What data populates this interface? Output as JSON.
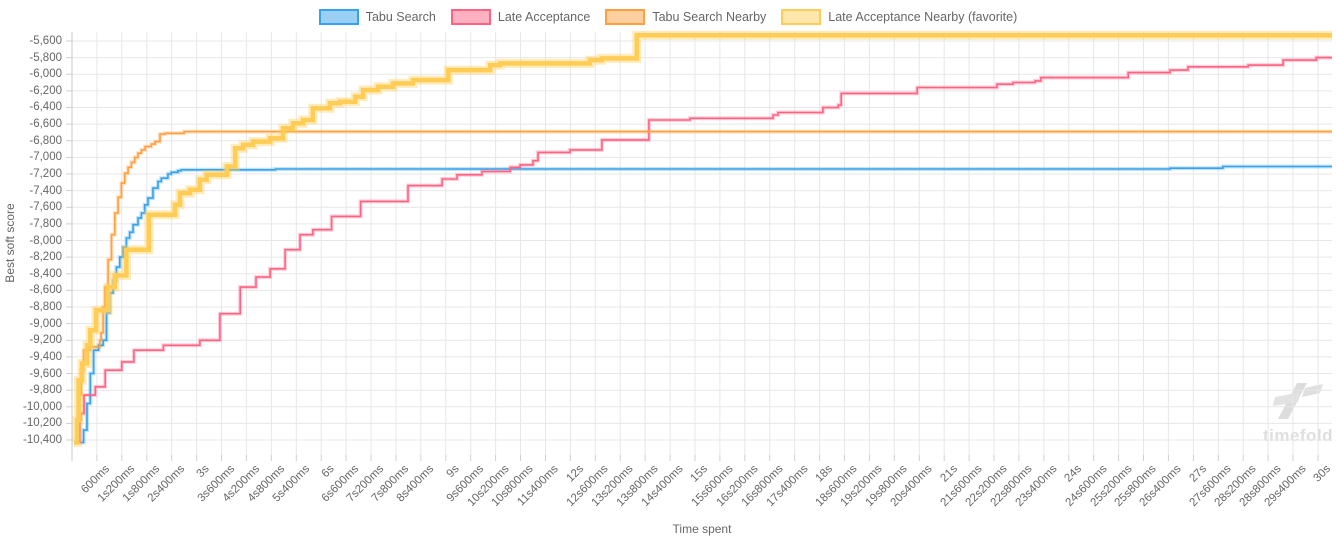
{
  "watermark": {
    "text": "timefold"
  },
  "chart_data": {
    "type": "line",
    "title": "",
    "xlabel": "Time spent",
    "ylabel": "Best soft score",
    "grid": true,
    "legend_position": "top",
    "line_style": "step-after",
    "x_range": [
      0,
      30338
    ],
    "y_range": [
      -10580,
      -5492
    ],
    "y_ticks": [
      -5600,
      -5800,
      -6000,
      -6200,
      -6400,
      -6600,
      -6800,
      -7000,
      -7200,
      -7400,
      -7600,
      -7800,
      -8000,
      -8200,
      -8400,
      -8600,
      -8800,
      -9000,
      -9200,
      -9400,
      -9600,
      -9800,
      -10000,
      -10200,
      -10400
    ],
    "y_tick_labels": [
      "-5,600",
      "-5,800",
      "-6,000",
      "-6,200",
      "-6,400",
      "-6,600",
      "-6,800",
      "-7,000",
      "-7,200",
      "-7,400",
      "-7,600",
      "-7,800",
      "-8,000",
      "-8,200",
      "-8,400",
      "-8,600",
      "-8,800",
      "-9,000",
      "-9,200",
      "-9,400",
      "-9,600",
      "-9,800",
      "-10,000",
      "-10,200",
      "-10,400"
    ],
    "x_ticks_ms": [
      600,
      1200,
      1800,
      2400,
      3000,
      3600,
      4200,
      4800,
      5400,
      6000,
      6600,
      7200,
      7800,
      8400,
      9000,
      9600,
      10200,
      10800,
      11400,
      12000,
      12600,
      13200,
      13800,
      14400,
      15000,
      15600,
      16200,
      16800,
      17400,
      18000,
      18600,
      19200,
      19800,
      20400,
      21000,
      21600,
      22200,
      22800,
      23400,
      24000,
      24600,
      25200,
      25800,
      26400,
      27000,
      27600,
      28200,
      28800,
      29400,
      30000
    ],
    "x_tick_labels": [
      "600ms",
      "1s200ms",
      "1s800ms",
      "2s400ms",
      "3s",
      "3s600ms",
      "4s200ms",
      "4s800ms",
      "5s400ms",
      "6s",
      "6s600ms",
      "7s200ms",
      "7s800ms",
      "8s400ms",
      "9s",
      "9s600ms",
      "10s200ms",
      "10s800ms",
      "11s400ms",
      "12s",
      "12s600ms",
      "13s200ms",
      "13s800ms",
      "14s400ms",
      "15s",
      "15s600ms",
      "16s200ms",
      "16s800ms",
      "17s400ms",
      "18s",
      "18s600ms",
      "19s200ms",
      "19s800ms",
      "20s400ms",
      "21s",
      "21s600ms",
      "22s200ms",
      "22s800ms",
      "23s400ms",
      "24s",
      "24s600ms",
      "25s200ms",
      "25s800ms",
      "26s400ms",
      "27s",
      "27s600ms",
      "28s200ms",
      "28s800ms",
      "29s400ms",
      "30s"
    ],
    "grid_color": "#e7e7e7",
    "tick_color": "#cfcfcf",
    "axis_border_color": "#c9c9c9",
    "series": [
      {
        "name": "Tabu Search",
        "color": "#36A2EB",
        "swatch_fill": "#9BD0F5",
        "halo": "rgba(54,162,235,0.30)",
        "width": 1.6,
        "halo_width": 4,
        "points": [
          [
            200,
            -10430
          ],
          [
            280,
            -10280
          ],
          [
            360,
            -9960
          ],
          [
            440,
            -9600
          ],
          [
            520,
            -9320
          ],
          [
            640,
            -9260
          ],
          [
            750,
            -9200
          ],
          [
            830,
            -8870
          ],
          [
            910,
            -8630
          ],
          [
            990,
            -8480
          ],
          [
            1070,
            -8320
          ],
          [
            1150,
            -8200
          ],
          [
            1230,
            -8080
          ],
          [
            1310,
            -7970
          ],
          [
            1390,
            -7900
          ],
          [
            1470,
            -7810
          ],
          [
            1590,
            -7730
          ],
          [
            1670,
            -7670
          ],
          [
            1750,
            -7570
          ],
          [
            1830,
            -7490
          ],
          [
            1950,
            -7370
          ],
          [
            2070,
            -7290
          ],
          [
            2150,
            -7250
          ],
          [
            2310,
            -7200
          ],
          [
            2390,
            -7180
          ],
          [
            2550,
            -7160
          ],
          [
            2630,
            -7150
          ],
          [
            4900,
            -7140
          ],
          [
            26440,
            -7130
          ],
          [
            27710,
            -7110
          ],
          [
            30330,
            -7110
          ]
        ]
      },
      {
        "name": "Late Acceptance",
        "color": "#FF6384",
        "swatch_fill": "#FFB1C1",
        "halo": "rgba(255,99,132,0.30)",
        "width": 1.6,
        "halo_width": 4,
        "points": [
          [
            60,
            -10430
          ],
          [
            190,
            -10160
          ],
          [
            210,
            -10080
          ],
          [
            290,
            -9860
          ],
          [
            560,
            -9760
          ],
          [
            800,
            -9560
          ],
          [
            1200,
            -9460
          ],
          [
            1490,
            -9320
          ],
          [
            2200,
            -9260
          ],
          [
            3080,
            -9200
          ],
          [
            3560,
            -8880
          ],
          [
            4050,
            -8560
          ],
          [
            4430,
            -8440
          ],
          [
            4770,
            -8340
          ],
          [
            5130,
            -8110
          ],
          [
            5490,
            -7930
          ],
          [
            5800,
            -7870
          ],
          [
            6250,
            -7710
          ],
          [
            6950,
            -7530
          ],
          [
            8090,
            -7340
          ],
          [
            8910,
            -7260
          ],
          [
            9270,
            -7210
          ],
          [
            9870,
            -7170
          ],
          [
            10550,
            -7120
          ],
          [
            10790,
            -7090
          ],
          [
            11100,
            -7040
          ],
          [
            11220,
            -6940
          ],
          [
            11990,
            -6910
          ],
          [
            12760,
            -6790
          ],
          [
            13890,
            -6550
          ],
          [
            14880,
            -6530
          ],
          [
            16880,
            -6490
          ],
          [
            17000,
            -6460
          ],
          [
            18080,
            -6400
          ],
          [
            18450,
            -6370
          ],
          [
            18520,
            -6230
          ],
          [
            20350,
            -6160
          ],
          [
            22270,
            -6120
          ],
          [
            22660,
            -6100
          ],
          [
            23190,
            -6080
          ],
          [
            23330,
            -6040
          ],
          [
            25430,
            -5980
          ],
          [
            26440,
            -5950
          ],
          [
            26870,
            -5910
          ],
          [
            28320,
            -5890
          ],
          [
            29160,
            -5830
          ],
          [
            29960,
            -5800
          ],
          [
            30330,
            -5800
          ]
        ]
      },
      {
        "name": "Tabu Search Nearby",
        "color": "#FF9F40",
        "swatch_fill": "#FFCF9F",
        "halo": "rgba(255,159,64,0.30)",
        "width": 1.6,
        "halo_width": 4,
        "points": [
          [
            70,
            -10430
          ],
          [
            120,
            -10160
          ],
          [
            170,
            -9860
          ],
          [
            220,
            -9560
          ],
          [
            280,
            -9320
          ],
          [
            430,
            -9280
          ],
          [
            670,
            -9200
          ],
          [
            700,
            -9110
          ],
          [
            750,
            -8800
          ],
          [
            790,
            -8560
          ],
          [
            870,
            -8230
          ],
          [
            950,
            -7930
          ],
          [
            1030,
            -7670
          ],
          [
            1110,
            -7480
          ],
          [
            1190,
            -7310
          ],
          [
            1270,
            -7190
          ],
          [
            1350,
            -7120
          ],
          [
            1430,
            -7060
          ],
          [
            1510,
            -7000
          ],
          [
            1590,
            -6950
          ],
          [
            1670,
            -6910
          ],
          [
            1760,
            -6870
          ],
          [
            1910,
            -6840
          ],
          [
            2000,
            -6810
          ],
          [
            2120,
            -6720
          ],
          [
            2240,
            -6710
          ],
          [
            2700,
            -6690
          ],
          [
            30330,
            -6690
          ]
        ]
      },
      {
        "name": "Late Acceptance Nearby (favorite)",
        "color": "#FFCD56",
        "swatch_fill": "#FFE6AB",
        "halo": "rgba(255,205,86,0.40)",
        "width": 4.5,
        "halo_width": 9,
        "points": [
          [
            50,
            -10430
          ],
          [
            120,
            -10160
          ],
          [
            160,
            -9680
          ],
          [
            240,
            -9480
          ],
          [
            360,
            -9260
          ],
          [
            440,
            -9080
          ],
          [
            580,
            -8840
          ],
          [
            870,
            -8560
          ],
          [
            1030,
            -8420
          ],
          [
            1310,
            -8110
          ],
          [
            1850,
            -7690
          ],
          [
            2480,
            -7570
          ],
          [
            2600,
            -7430
          ],
          [
            2840,
            -7390
          ],
          [
            3080,
            -7270
          ],
          [
            3240,
            -7210
          ],
          [
            3730,
            -7110
          ],
          [
            3930,
            -6890
          ],
          [
            4120,
            -6850
          ],
          [
            4360,
            -6810
          ],
          [
            4770,
            -6770
          ],
          [
            5080,
            -6650
          ],
          [
            5320,
            -6590
          ],
          [
            5560,
            -6550
          ],
          [
            5800,
            -6410
          ],
          [
            6210,
            -6350
          ],
          [
            6450,
            -6330
          ],
          [
            6820,
            -6270
          ],
          [
            7010,
            -6190
          ],
          [
            7370,
            -6150
          ],
          [
            7730,
            -6110
          ],
          [
            8210,
            -6070
          ],
          [
            9060,
            -5950
          ],
          [
            10070,
            -5890
          ],
          [
            10310,
            -5870
          ],
          [
            12470,
            -5830
          ],
          [
            12760,
            -5810
          ],
          [
            13600,
            -5530
          ],
          [
            30330,
            -5530
          ]
        ]
      }
    ]
  }
}
